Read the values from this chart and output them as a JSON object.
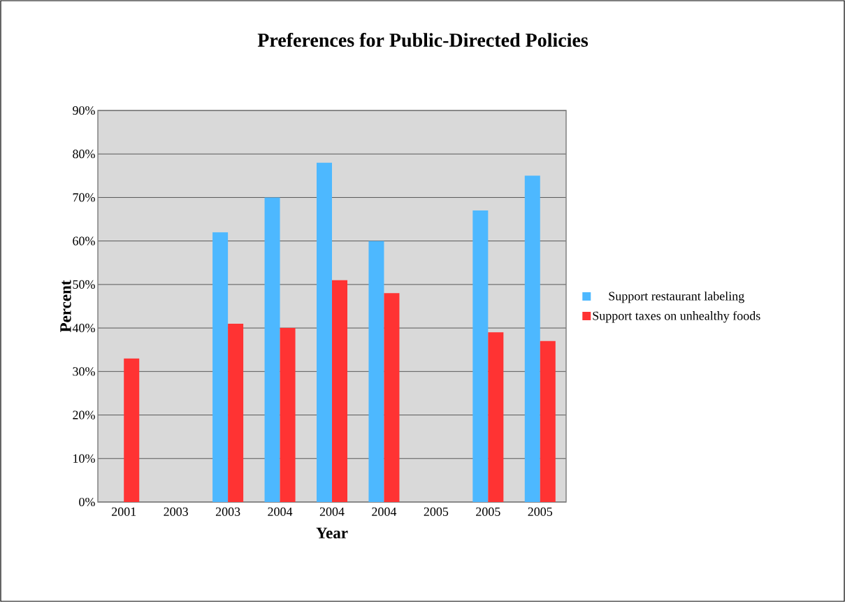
{
  "chart_data": {
    "type": "bar",
    "title": "Preferences for Public-Directed Policies",
    "xlabel": "Year",
    "ylabel": "Percent",
    "categories": [
      "2001",
      "2003",
      "2003",
      "2004",
      "2004",
      "2004",
      "2005",
      "2005",
      "2005"
    ],
    "series": [
      {
        "name": "Support restaurant labeling",
        "color": "#4db8ff",
        "values": [
          null,
          null,
          62,
          70,
          78,
          60,
          null,
          67,
          75
        ]
      },
      {
        "name": "Support taxes on unhealthy foods",
        "color": "#ff3333",
        "values": [
          33,
          null,
          41,
          40,
          51,
          48,
          null,
          39,
          37
        ]
      }
    ],
    "ylim": [
      0,
      90
    ],
    "yticks": [
      {
        "value": 0,
        "label": "0%"
      },
      {
        "value": 10,
        "label": "10%"
      },
      {
        "value": 20,
        "label": "20%"
      },
      {
        "value": 30,
        "label": "30%"
      },
      {
        "value": 40,
        "label": "40%"
      },
      {
        "value": 50,
        "label": "50%"
      },
      {
        "value": 60,
        "label": "60%"
      },
      {
        "value": 70,
        "label": "70%"
      },
      {
        "value": 80,
        "label": "80%"
      },
      {
        "value": 90,
        "label": "90%"
      }
    ],
    "grid": "y",
    "legend": "right"
  }
}
